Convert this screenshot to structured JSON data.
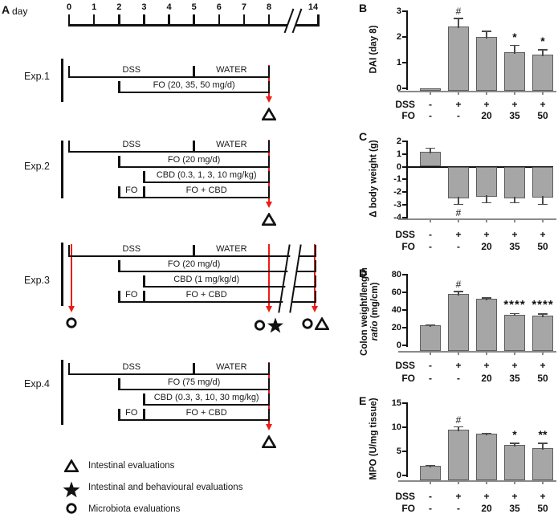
{
  "colors": {
    "arrow_red": "#ed1c16",
    "bar_fill": "#a6a6a6",
    "bar_border": "#5e5e5e",
    "axis_gray": "#8a8a8a"
  },
  "panelA": {
    "label": "A",
    "day_label": "day",
    "timeline": {
      "days": [
        "0",
        "1",
        "2",
        "3",
        "4",
        "5",
        "6",
        "7",
        "8"
      ],
      "end_day": "14"
    },
    "experiments": [
      {
        "label": "Exp.1",
        "rows": [
          {
            "segments": [
              {
                "label": "DSS",
                "from": 0,
                "to": 5
              },
              {
                "label": "WATER",
                "from": 5,
                "to": 8
              }
            ]
          },
          {
            "segments": [
              {
                "label": "FO (20, 35, 50 mg/d)",
                "from": 2,
                "to": 8
              }
            ]
          }
        ],
        "arrows": [
          {
            "day": 8
          }
        ],
        "events": [
          {
            "day": 8,
            "symbols": [
              "triangle"
            ]
          }
        ]
      },
      {
        "label": "Exp.2",
        "rows": [
          {
            "segments": [
              {
                "label": "DSS",
                "from": 0,
                "to": 5
              },
              {
                "label": "WATER",
                "from": 5,
                "to": 8
              }
            ]
          },
          {
            "segments": [
              {
                "label": "FO (20 mg/d)",
                "from": 2,
                "to": 8
              }
            ]
          },
          {
            "segments": [
              {
                "label": "CBD (0.3, 1, 3, 10 mg/kg)",
                "from": 3,
                "to": 8
              }
            ]
          },
          {
            "segments": [
              {
                "label": "FO",
                "from": 2,
                "to": 3
              },
              {
                "label": "FO + CBD",
                "from": 3,
                "to": 8
              }
            ]
          }
        ],
        "arrows": [
          {
            "day": 8
          }
        ],
        "events": [
          {
            "day": 8,
            "symbols": [
              "triangle"
            ]
          }
        ]
      },
      {
        "label": "Exp.3",
        "extend_to": 14,
        "break": true,
        "rows": [
          {
            "segments": [
              {
                "label": "DSS",
                "from": 0,
                "to": 5
              },
              {
                "label": "WATER",
                "from": 5,
                "to": 8
              }
            ]
          },
          {
            "segments": [
              {
                "label": "FO (20 mg/d)",
                "from": 2,
                "to": 8
              }
            ]
          },
          {
            "segments": [
              {
                "label": "CBD (1 mg/kg/d)",
                "from": 3,
                "to": 8
              }
            ]
          },
          {
            "segments": [
              {
                "label": "FO",
                "from": 2,
                "to": 3
              },
              {
                "label": "FO + CBD",
                "from": 3,
                "to": 8
              }
            ]
          }
        ],
        "arrows": [
          {
            "day": 0
          },
          {
            "day": 8
          },
          {
            "day": 14
          }
        ],
        "events": [
          {
            "day": 0,
            "symbols": [
              "circle"
            ]
          },
          {
            "day": 8,
            "symbols": [
              "circle",
              "star"
            ]
          },
          {
            "day": 14,
            "symbols": [
              "circle",
              "triangle"
            ]
          }
        ]
      },
      {
        "label": "Exp.4",
        "rows": [
          {
            "segments": [
              {
                "label": "DSS",
                "from": 0,
                "to": 5
              },
              {
                "label": "WATER",
                "from": 5,
                "to": 8
              }
            ]
          },
          {
            "segments": [
              {
                "label": "FO (75 mg/d)",
                "from": 2,
                "to": 8
              }
            ]
          },
          {
            "segments": [
              {
                "label": "CBD (0.3, 3, 10, 30 mg/kg)",
                "from": 3,
                "to": 8
              }
            ]
          },
          {
            "segments": [
              {
                "label": "FO",
                "from": 2,
                "to": 3
              },
              {
                "label": "FO + CBD",
                "from": 3,
                "to": 8
              }
            ]
          }
        ],
        "arrows": [
          {
            "day": 8
          }
        ],
        "events": [
          {
            "day": 8,
            "symbols": [
              "triangle"
            ]
          }
        ]
      }
    ],
    "legend": [
      {
        "symbol": "triangle",
        "text": "Intestinal evaluations"
      },
      {
        "symbol": "star",
        "text": "Intestinal and behavioural evaluations"
      },
      {
        "symbol": "circle",
        "text": "Microbiota evaluations"
      }
    ]
  },
  "chart_data": [
    {
      "id": "B",
      "type": "bar",
      "panel_label": "B",
      "ylabel": "DAI (day 8)",
      "yticks": [
        "3",
        "2",
        "1",
        "0"
      ],
      "ytick_values": [
        3,
        2,
        1,
        0
      ],
      "ylim": [
        0,
        3
      ],
      "row_labels": {
        "dss": "DSS",
        "fo": "FO"
      },
      "groups_dss": [
        "-",
        "+",
        "+",
        "+",
        "+"
      ],
      "groups_fo": [
        "-",
        "-",
        "20",
        "35",
        "50"
      ],
      "values": [
        0,
        2.4,
        2.0,
        1.4,
        1.3
      ],
      "errors": [
        0,
        0.35,
        0.25,
        0.3,
        0.22
      ],
      "sig": [
        "",
        "#",
        "",
        "*",
        "*"
      ]
    },
    {
      "id": "C",
      "type": "bar",
      "panel_label": "C",
      "ylabel": "Δ body weight (g)",
      "yticks": [
        "2",
        "1",
        "0",
        "-1",
        "-2",
        "-3",
        "-4"
      ],
      "ytick_values": [
        2,
        1,
        0,
        -1,
        -2,
        -3,
        -4
      ],
      "ylim": [
        -4,
        2
      ],
      "row_labels": {
        "dss": "DSS",
        "fo": "FO"
      },
      "groups_dss": [
        "-",
        "+",
        "+",
        "+",
        "+"
      ],
      "groups_fo": [
        "-",
        "-",
        "20",
        "35",
        "50"
      ],
      "values": [
        1.2,
        -2.5,
        -2.4,
        -2.5,
        -2.45
      ],
      "errors": [
        0.3,
        0.5,
        0.45,
        0.35,
        0.55
      ],
      "sig": [
        "",
        "#",
        "",
        "",
        ""
      ]
    },
    {
      "id": "D",
      "type": "bar",
      "panel_label": "D",
      "ylabel_line1": "Colon weight/length",
      "ylabel_line2_italic": "ratio",
      "ylabel_line2_rest": " (mg/cm)",
      "yticks": [
        "80",
        "60",
        "40",
        "20",
        "0"
      ],
      "ytick_values": [
        80,
        60,
        40,
        20,
        0
      ],
      "ylim": [
        0,
        80
      ],
      "row_labels": {
        "dss": "DSS",
        "fo": "FO"
      },
      "groups_dss": [
        "-",
        "+",
        "+",
        "+",
        "+"
      ],
      "groups_fo": [
        "-",
        "-",
        "20",
        "35",
        "50"
      ],
      "values": [
        23,
        58,
        53,
        35,
        34
      ],
      "errors": [
        1,
        3.5,
        1.5,
        1.5,
        2
      ],
      "sig": [
        "",
        "#",
        "",
        "****",
        "****"
      ]
    },
    {
      "id": "E",
      "type": "bar",
      "panel_label": "E",
      "ylabel": "MPO (U/mg tissue)",
      "yticks": [
        "15",
        "10",
        "5",
        "0"
      ],
      "ytick_values": [
        15,
        10,
        5,
        0
      ],
      "ylim": [
        0,
        15
      ],
      "row_labels": {
        "dss": "DSS",
        "fo": "FO"
      },
      "groups_dss": [
        "-",
        "+",
        "+",
        "+",
        "+"
      ],
      "groups_fo": [
        "-",
        "-",
        "20",
        "35",
        "50"
      ],
      "values": [
        2,
        9.5,
        8.6,
        6.3,
        5.6
      ],
      "errors": [
        0.2,
        0.7,
        0.3,
        0.5,
        1.2
      ],
      "sig": [
        "",
        "#",
        "",
        "*",
        "**"
      ]
    }
  ]
}
